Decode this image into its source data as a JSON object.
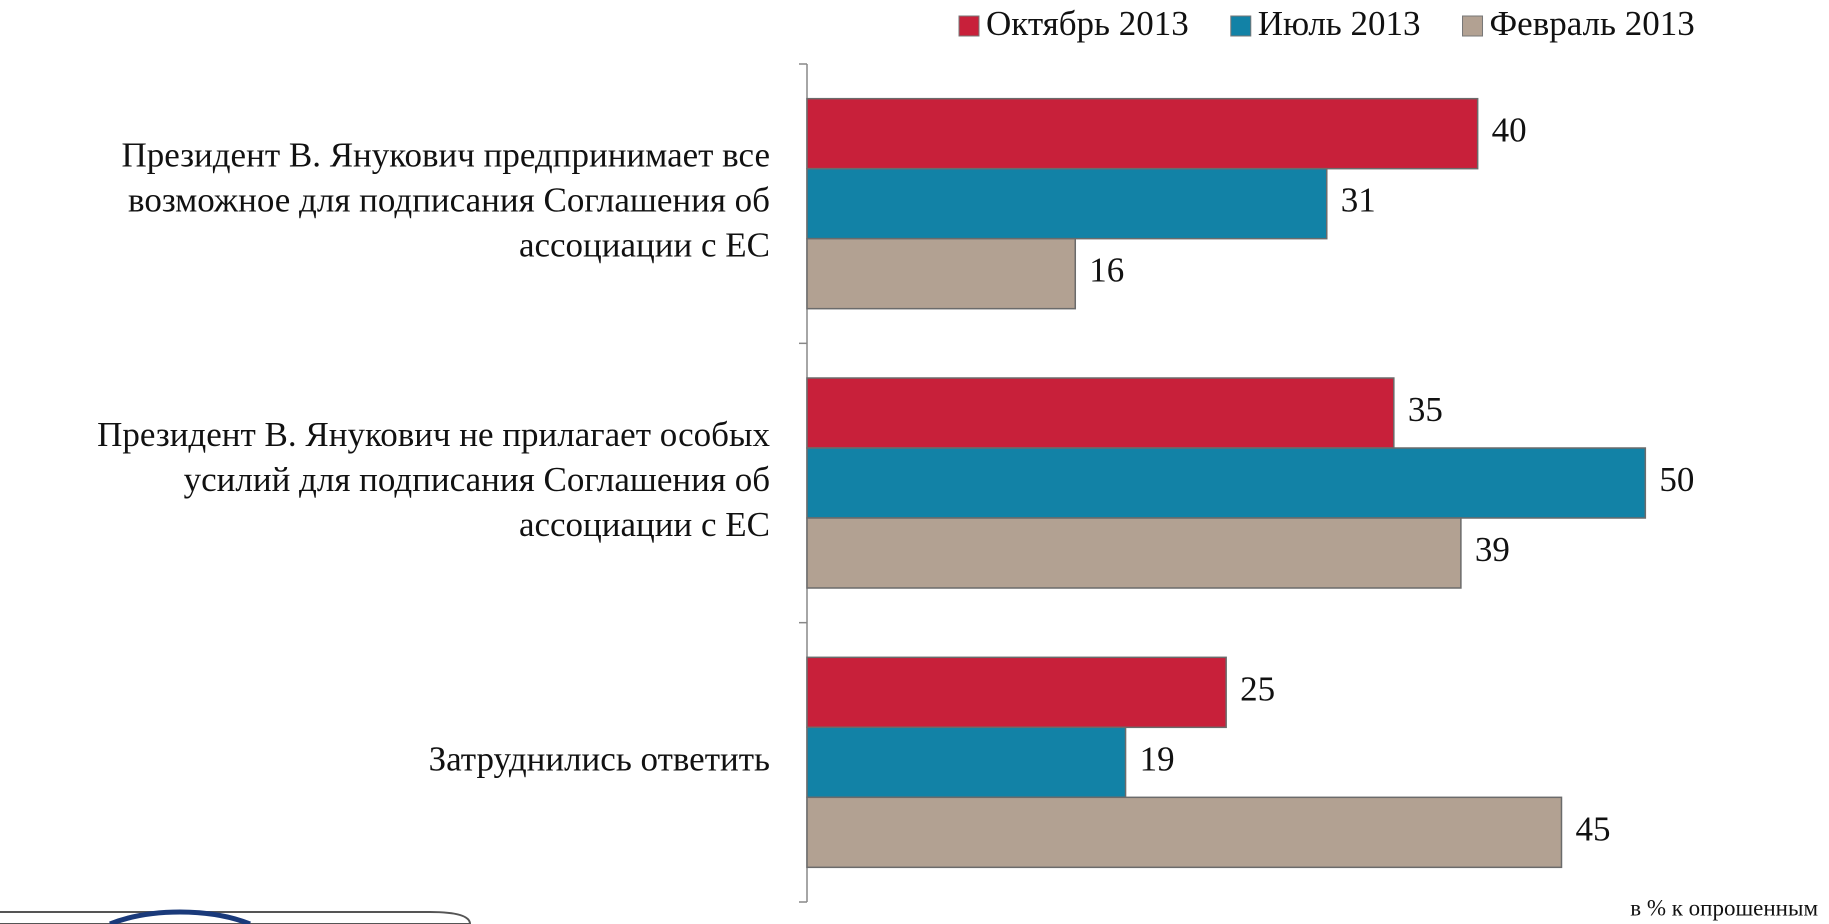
{
  "chart_data": {
    "type": "bar",
    "orientation": "horizontal",
    "categories": [
      "Президент В. Янукович предпринимает все\nвозможное для подписания Соглашения об\nассоциации с ЕС",
      "Президент В. Янукович не прилагает особых\nусилий для подписания Соглашения об\nассоциации с ЕС",
      "Затруднились ответить"
    ],
    "series": [
      {
        "name": "Октябрь 2013",
        "color": "#c8203a",
        "values": [
          40,
          35,
          25
        ]
      },
      {
        "name": "Июль 2013",
        "color": "#1282a6",
        "values": [
          31,
          50,
          19
        ]
      },
      {
        "name": "Февраль 2013",
        "color": "#b2a192",
        "values": [
          16,
          39,
          45
        ]
      }
    ],
    "xlim": [
      0,
      60
    ],
    "legend": "top-right",
    "note": "в % к опрошенным"
  }
}
